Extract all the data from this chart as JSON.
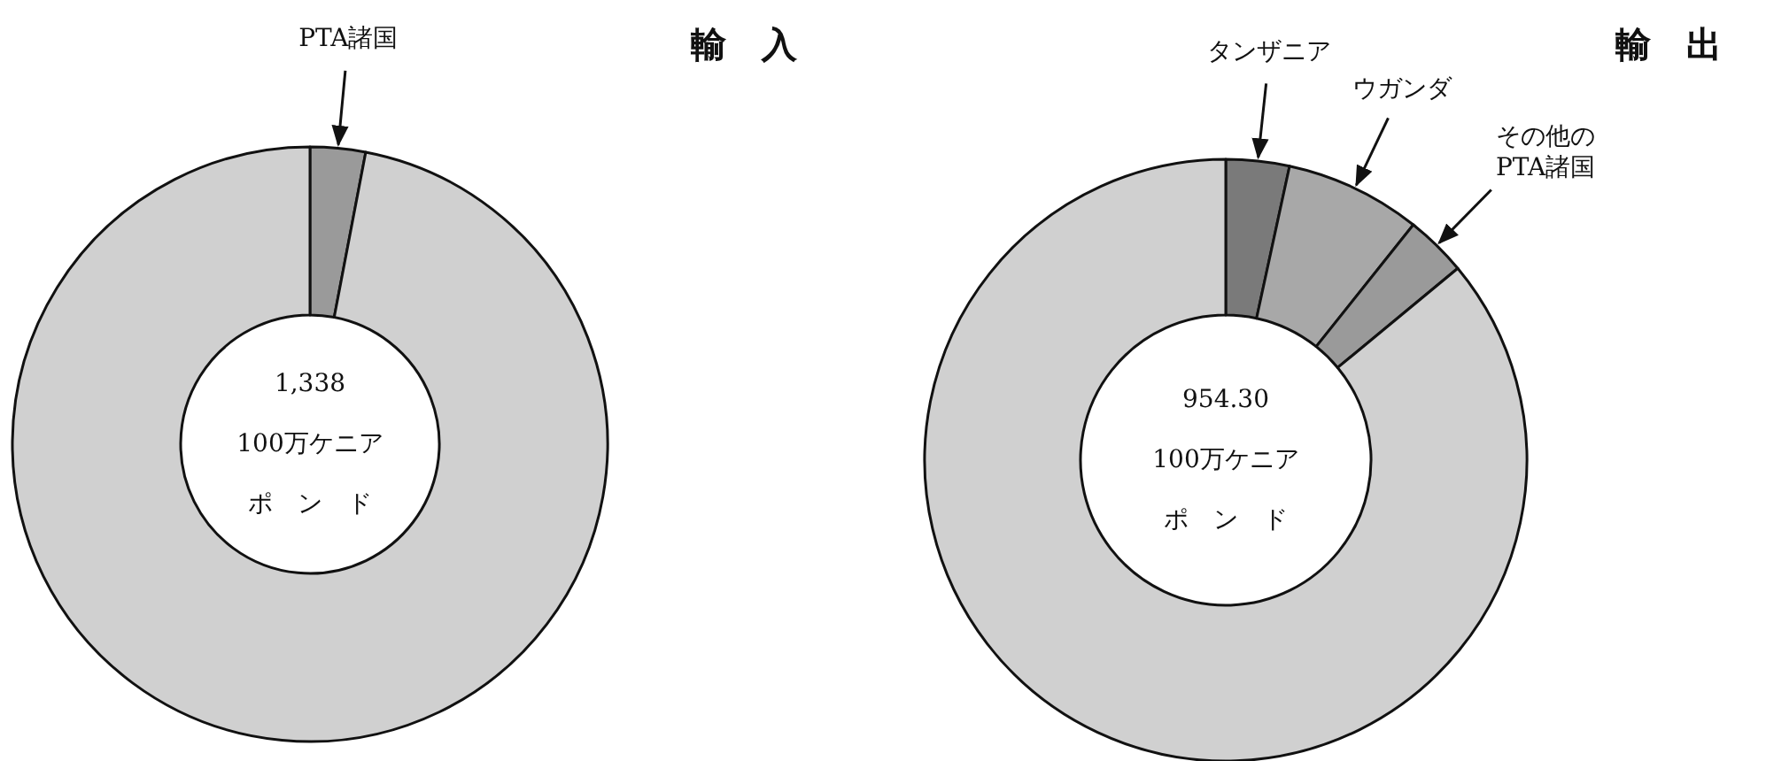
{
  "chart_data": [
    {
      "type": "donut",
      "title": "輸　入",
      "categories": [
        "PTA諸国",
        null
      ],
      "values": [
        3,
        97
      ],
      "colors": [
        "#9a9a9a",
        "#d0d0d0"
      ],
      "annotations": [
        "1,338",
        "100万ケニア",
        "ポ　ン　ド"
      ]
    },
    {
      "type": "donut",
      "title": "輸　出",
      "categories": [
        "タンザニア",
        "ウガンダ",
        "その他の\nPTA諸国",
        null
      ],
      "values": [
        3.4,
        7.3,
        3.3,
        86
      ],
      "colors": [
        "#7a7a7a",
        "#a8a8a8",
        "#9a9a9a",
        "#d0d0d0"
      ],
      "annotations": [
        "954.30",
        "100万ケニア",
        "ポ　ン　ド"
      ]
    }
  ]
}
